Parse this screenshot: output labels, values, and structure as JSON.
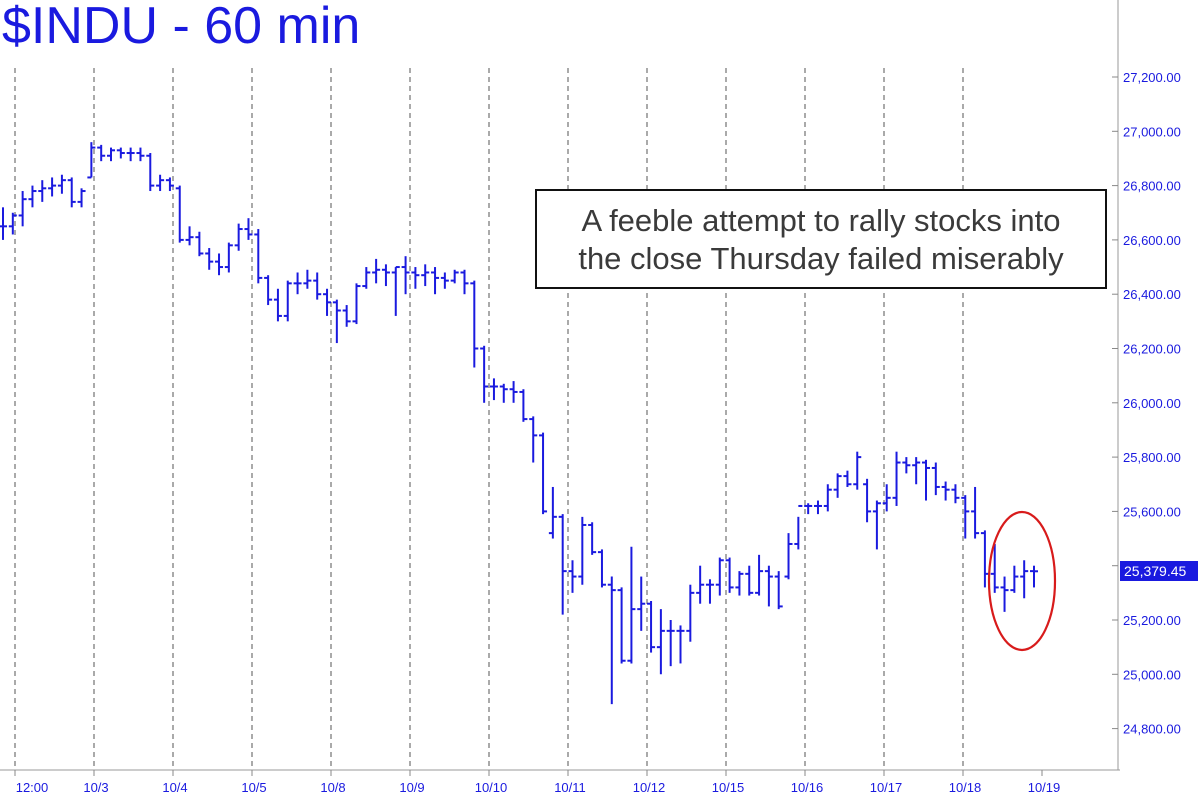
{
  "chart_data": {
    "type": "ohlc",
    "title": "$INDU - 60 min",
    "annotation": [
      "A feeble attempt to rally stocks into",
      "the close Thursday failed miserably"
    ],
    "x_tick_labels": [
      "12:00",
      "10/3",
      "10/4",
      "10/5",
      "10/8",
      "10/9",
      "10/10",
      "10/11",
      "10/12",
      "10/15",
      "10/16",
      "10/17",
      "10/18",
      "10/19"
    ],
    "y_tick_labels": [
      "27,200.00",
      "27,000.00",
      "26,800.00",
      "26,600.00",
      "26,400.00",
      "26,200.00",
      "26,000.00",
      "25,800.00",
      "25,600.00",
      "25,400.00",
      "25,200.00",
      "25,000.00",
      "24,800.00"
    ],
    "y_ticks": [
      27200,
      27000,
      26800,
      26600,
      26400,
      26200,
      26000,
      25800,
      25600,
      25400,
      25200,
      25000,
      24800
    ],
    "ylim": [
      24700,
      27450
    ],
    "last_price": "25,379.45",
    "last_value": 25379.45,
    "grid": "vertical dashed at session starts",
    "bars": [
      [
        26650,
        26720,
        26600,
        26650
      ],
      [
        26650,
        26700,
        26620,
        26690
      ],
      [
        26690,
        26780,
        26650,
        26750
      ],
      [
        26750,
        26800,
        26720,
        26780
      ],
      [
        26780,
        26820,
        26740,
        26790
      ],
      [
        26790,
        26830,
        26760,
        26800
      ],
      [
        26800,
        26840,
        26770,
        26820
      ],
      [
        26820,
        26830,
        26720,
        26740
      ],
      [
        26740,
        26790,
        26720,
        26780
      ],
      [
        26830,
        26960,
        26830,
        26940
      ],
      [
        26940,
        26950,
        26890,
        26910
      ],
      [
        26910,
        26940,
        26890,
        26930
      ],
      [
        26930,
        26940,
        26900,
        26920
      ],
      [
        26920,
        26940,
        26890,
        26920
      ],
      [
        26920,
        26940,
        26890,
        26910
      ],
      [
        26910,
        26920,
        26780,
        26800
      ],
      [
        26800,
        26840,
        26780,
        26820
      ],
      [
        26820,
        26830,
        26780,
        26800
      ],
      [
        26790,
        26800,
        26590,
        26600
      ],
      [
        26600,
        26650,
        26580,
        26610
      ],
      [
        26610,
        26630,
        26540,
        26550
      ],
      [
        26550,
        26570,
        26490,
        26520
      ],
      [
        26520,
        26550,
        26470,
        26500
      ],
      [
        26500,
        26590,
        26480,
        26580
      ],
      [
        26580,
        26660,
        26560,
        26640
      ],
      [
        26640,
        26680,
        26600,
        26620
      ],
      [
        26620,
        26640,
        26440,
        26460
      ],
      [
        26460,
        26470,
        26360,
        26380
      ],
      [
        26380,
        26420,
        26300,
        26320
      ],
      [
        26320,
        26450,
        26300,
        26440
      ],
      [
        26440,
        26480,
        26400,
        26440
      ],
      [
        26440,
        26490,
        26420,
        26450
      ],
      [
        26450,
        26480,
        26380,
        26400
      ],
      [
        26400,
        26420,
        26320,
        26370
      ],
      [
        26370,
        26380,
        26220,
        26340
      ],
      [
        26340,
        26360,
        26280,
        26300
      ],
      [
        26300,
        26440,
        26290,
        26430
      ],
      [
        26430,
        26500,
        26420,
        26480
      ],
      [
        26480,
        26530,
        26440,
        26490
      ],
      [
        26490,
        26510,
        26430,
        26480
      ],
      [
        26480,
        26500,
        26320,
        26500
      ],
      [
        26500,
        26540,
        26400,
        26480
      ],
      [
        26480,
        26500,
        26420,
        26470
      ],
      [
        26470,
        26510,
        26430,
        26480
      ],
      [
        26480,
        26500,
        26400,
        26460
      ],
      [
        26460,
        26480,
        26420,
        26450
      ],
      [
        26450,
        26490,
        26440,
        26480
      ],
      [
        26480,
        26490,
        26400,
        26440
      ],
      [
        26440,
        26450,
        26130,
        26200
      ],
      [
        26200,
        26210,
        26000,
        26060
      ],
      [
        26060,
        26090,
        26010,
        26060
      ],
      [
        26060,
        26070,
        26000,
        26050
      ],
      [
        26050,
        26080,
        26000,
        26040
      ],
      [
        26040,
        26050,
        25930,
        25940
      ],
      [
        25940,
        25950,
        25780,
        25880
      ],
      [
        25880,
        25890,
        25590,
        25600
      ],
      [
        25520,
        25690,
        25500,
        25580
      ],
      [
        25580,
        25590,
        25220,
        25380
      ],
      [
        25380,
        25420,
        25300,
        25360
      ],
      [
        25360,
        25580,
        25330,
        25550
      ],
      [
        25550,
        25560,
        25440,
        25450
      ],
      [
        25450,
        25460,
        25320,
        25330
      ],
      [
        25330,
        25360,
        24890,
        25310
      ],
      [
        25310,
        25320,
        25040,
        25050
      ],
      [
        25050,
        25470,
        25040,
        25240
      ],
      [
        25240,
        25360,
        25160,
        25260
      ],
      [
        25260,
        25270,
        25080,
        25100
      ],
      [
        25100,
        25240,
        25000,
        25160
      ],
      [
        25160,
        25200,
        25030,
        25160
      ],
      [
        25160,
        25180,
        25040,
        25160
      ],
      [
        25160,
        25330,
        25120,
        25300
      ],
      [
        25300,
        25400,
        25260,
        25330
      ],
      [
        25330,
        25350,
        25260,
        25330
      ],
      [
        25330,
        25430,
        25290,
        25420
      ],
      [
        25420,
        25430,
        25300,
        25320
      ],
      [
        25320,
        25380,
        25290,
        25370
      ],
      [
        25370,
        25400,
        25290,
        25300
      ],
      [
        25300,
        25440,
        25290,
        25380
      ],
      [
        25380,
        25400,
        25250,
        25360
      ],
      [
        25360,
        25380,
        25240,
        25250
      ],
      [
        25360,
        25520,
        25350,
        25480
      ],
      [
        25480,
        25580,
        25460,
        25620
      ],
      [
        25620,
        25630,
        25590,
        25620
      ],
      [
        25620,
        25640,
        25590,
        25620
      ],
      [
        25620,
        25700,
        25600,
        25680
      ],
      [
        25680,
        25740,
        25650,
        25730
      ],
      [
        25730,
        25750,
        25690,
        25700
      ],
      [
        25700,
        25820,
        25680,
        25800
      ],
      [
        25700,
        25720,
        25560,
        25600
      ],
      [
        25600,
        25640,
        25460,
        25630
      ],
      [
        25630,
        25700,
        25600,
        25650
      ],
      [
        25650,
        25820,
        25620,
        25780
      ],
      [
        25780,
        25800,
        25740,
        25770
      ],
      [
        25770,
        25800,
        25700,
        25780
      ],
      [
        25780,
        25790,
        25640,
        25760
      ],
      [
        25760,
        25780,
        25660,
        25690
      ],
      [
        25690,
        25710,
        25640,
        25680
      ],
      [
        25680,
        25700,
        25630,
        25650
      ],
      [
        25650,
        25660,
        25500,
        25600
      ],
      [
        25600,
        25690,
        25500,
        25520
      ],
      [
        25520,
        25530,
        25320,
        25370
      ],
      [
        25370,
        25480,
        25300,
        25320
      ],
      [
        25320,
        25360,
        25230,
        25310
      ],
      [
        25310,
        25400,
        25300,
        25360
      ],
      [
        25360,
        25420,
        25280,
        25380
      ],
      [
        25380,
        25400,
        25320,
        25379.45
      ]
    ]
  }
}
